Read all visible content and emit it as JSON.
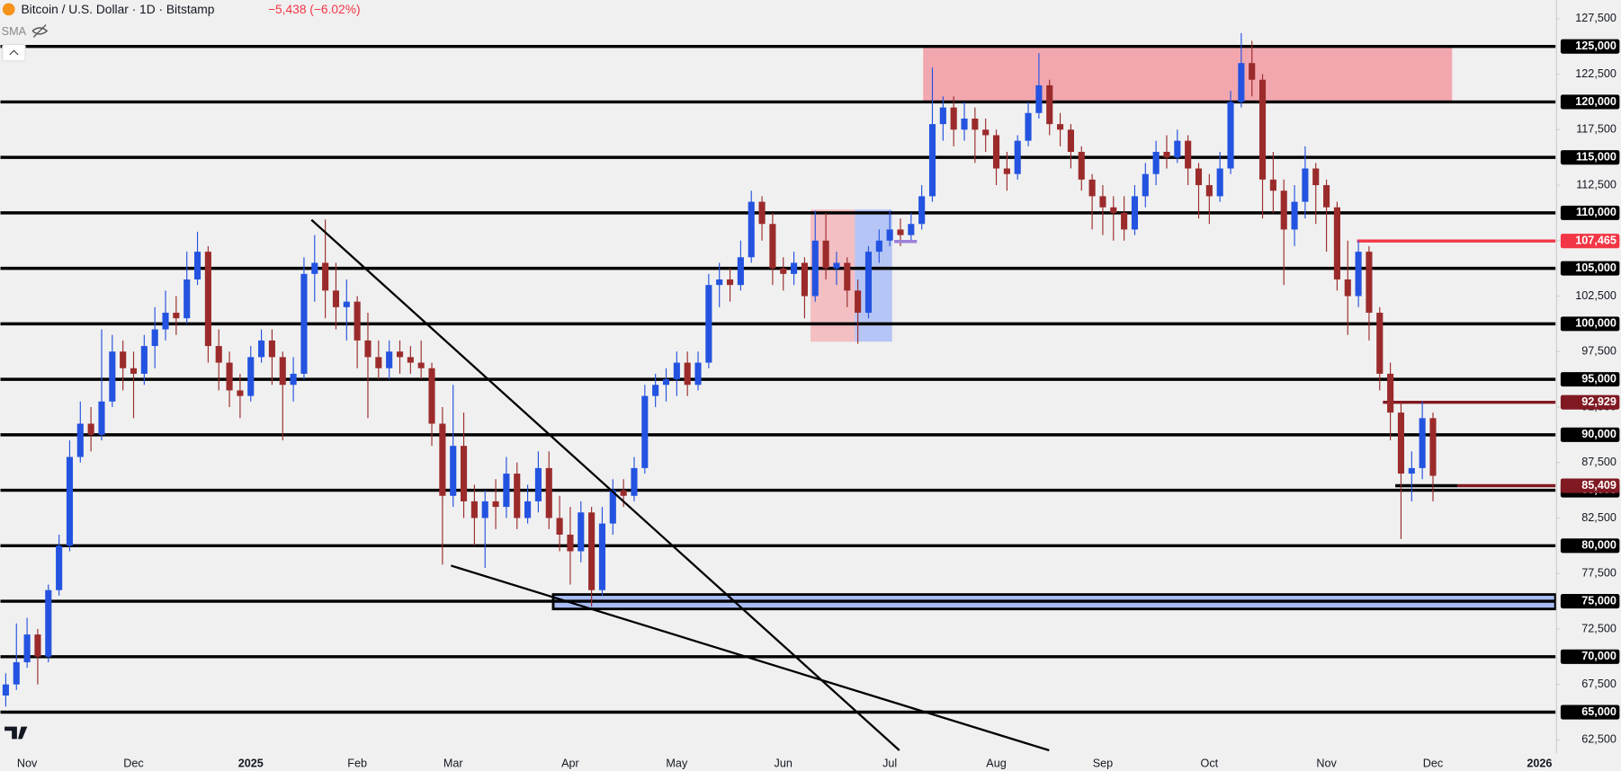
{
  "chart_data": {
    "type": "candlestick",
    "title": "Bitcoin / U.S. Dollar · 1D · Bitstamp",
    "change": "−5,438 (−6.02%)",
    "indicator": "SMA",
    "categories": [
      null,
      null,
      "Nov",
      null,
      null,
      null,
      null,
      null,
      null,
      null,
      null,
      null,
      "Dec",
      null,
      null,
      null,
      null,
      null,
      null,
      null,
      null,
      null,
      null,
      "2025",
      null,
      null,
      null,
      null,
      null,
      null,
      null,
      null,
      null,
      "Feb",
      null,
      null,
      null,
      null,
      null,
      null,
      null,
      null,
      "Mar",
      null,
      null,
      null,
      null,
      null,
      null,
      null,
      null,
      null,
      null,
      "Apr",
      null,
      null,
      null,
      null,
      null,
      null,
      null,
      null,
      null,
      "May",
      null,
      null,
      null,
      null,
      null,
      null,
      null,
      null,
      null,
      "Jun",
      null,
      null,
      null,
      null,
      null,
      null,
      null,
      null,
      null,
      "Jul",
      null,
      null,
      null,
      null,
      null,
      null,
      null,
      null,
      null,
      "Aug",
      null,
      null,
      null,
      null,
      null,
      null,
      null,
      null,
      null,
      "Sep",
      null,
      null,
      null,
      null,
      null,
      null,
      null,
      null,
      null,
      "Oct",
      null,
      null,
      null,
      null,
      null,
      null,
      null,
      null,
      null,
      null,
      "Nov",
      null,
      null,
      null,
      null,
      null,
      null,
      null,
      null,
      null,
      "Dec",
      null,
      null,
      null,
      null,
      null,
      null,
      null,
      null,
      null,
      "2026",
      null
    ],
    "open": [
      66500,
      67500,
      69500,
      72000,
      70000,
      76000,
      80000,
      88000,
      91000,
      90000,
      93000,
      97500,
      96000,
      95500,
      98000,
      99500,
      101000,
      100500,
      104000,
      106500,
      98000,
      96500,
      94000,
      93500,
      97000,
      98500,
      97000,
      94500,
      95500,
      104500,
      105500,
      103000,
      101500,
      102000,
      98500,
      97000,
      96000,
      97500,
      97000,
      96500,
      96000,
      91000,
      84500,
      89000,
      84000,
      82500,
      84000,
      83500,
      86500,
      82500,
      84000,
      87000,
      82500,
      81000,
      79500,
      83000,
      76000,
      82000,
      85000,
      84500,
      87000,
      93500,
      94500,
      95000,
      96500,
      94500,
      96500,
      103500,
      104000,
      103500,
      106000,
      111000,
      109000,
      105000,
      104500,
      105500,
      102500,
      107500,
      105000,
      105500,
      103000,
      101000,
      106500,
      107500,
      108500,
      108000,
      109000,
      111500,
      118000,
      119500,
      117500,
      118500,
      117500,
      117000,
      114000,
      113500,
      116500,
      119000,
      121500,
      118000,
      117500,
      115500,
      113000,
      111500,
      110500,
      110000,
      108500,
      111500,
      113500,
      115500,
      115000,
      116500,
      114000,
      112500,
      111500,
      114000,
      120000,
      123500,
      122000,
      113000,
      112000,
      108500,
      111000,
      114000,
      112500,
      110500,
      104000,
      102500,
      106500,
      101000,
      95500,
      92000,
      86500,
      87000,
      91500,
      null,
      null,
      null,
      null,
      null,
      null,
      null,
      null,
      null,
      null,
      null
    ],
    "high": [
      68500,
      73000,
      73500,
      72500,
      76500,
      81000,
      89500,
      93000,
      92500,
      99500,
      99000,
      98500,
      97500,
      99000,
      101500,
      103000,
      102500,
      106500,
      108300,
      107000,
      99500,
      97500,
      95500,
      98000,
      99500,
      99500,
      97500,
      97000,
      106000,
      108000,
      109400,
      105500,
      104000,
      102500,
      101000,
      98500,
      98500,
      98500,
      98000,
      98500,
      96500,
      92500,
      94500,
      92000,
      85500,
      85000,
      86000,
      88000,
      87500,
      85500,
      88500,
      88500,
      84500,
      83500,
      84000,
      83500,
      83500,
      86000,
      86000,
      88000,
      94500,
      95500,
      96000,
      97500,
      97500,
      97500,
      104500,
      105500,
      105000,
      107500,
      112000,
      111500,
      110000,
      106000,
      106500,
      106000,
      110200,
      110000,
      106500,
      106000,
      104000,
      107000,
      108500,
      110200,
      109500,
      110000,
      112500,
      123100,
      120500,
      120500,
      120000,
      119500,
      118500,
      117500,
      115500,
      117000,
      120000,
      124400,
      122000,
      119000,
      118000,
      116000,
      113500,
      112500,
      111500,
      111500,
      112500,
      114500,
      116500,
      117000,
      117500,
      117000,
      114500,
      113500,
      115500,
      121000,
      126200,
      125500,
      122500,
      115500,
      113000,
      112500,
      116000,
      114500,
      113000,
      111000,
      107500,
      107500,
      107000,
      101500,
      96500,
      93000,
      88500,
      93000,
      92000,
      null,
      null,
      null,
      null,
      null,
      null,
      null,
      null,
      null,
      null,
      null
    ],
    "low": [
      65500,
      67000,
      69000,
      67500,
      69500,
      75500,
      79500,
      87500,
      88500,
      89500,
      92500,
      94000,
      91500,
      94500,
      96000,
      98500,
      99000,
      100000,
      103500,
      96500,
      94000,
      92500,
      91500,
      93000,
      96500,
      94500,
      89500,
      93000,
      95000,
      102000,
      100500,
      99500,
      98500,
      96000,
      91500,
      95000,
      95000,
      95500,
      95500,
      95000,
      89000,
      78300,
      83500,
      82500,
      80000,
      78000,
      81500,
      82500,
      81500,
      82000,
      83000,
      81500,
      79500,
      76500,
      78500,
      74500,
      75500,
      81000,
      83500,
      84000,
      86500,
      92500,
      93000,
      93500,
      93500,
      94000,
      96000,
      101500,
      102000,
      103000,
      105500,
      107500,
      103500,
      103000,
      103500,
      100500,
      102000,
      104000,
      103500,
      101500,
      98200,
      100500,
      105500,
      107000,
      107000,
      107500,
      108500,
      111000,
      116500,
      116000,
      116500,
      114500,
      115500,
      112500,
      112000,
      113000,
      116000,
      118500,
      117000,
      116000,
      114000,
      112000,
      108500,
      108000,
      107500,
      107500,
      108000,
      110500,
      112500,
      114000,
      114500,
      112500,
      109500,
      109000,
      111000,
      113500,
      119500,
      120500,
      109500,
      110000,
      103500,
      107000,
      109500,
      109000,
      106500,
      103000,
      99000,
      101500,
      98500,
      94000,
      89500,
      80600,
      84000,
      86000,
      84000,
      null,
      null,
      null,
      null,
      null,
      null,
      null,
      null,
      null,
      null,
      null
    ],
    "close": [
      67500,
      69500,
      72000,
      70000,
      76000,
      80000,
      88000,
      91000,
      90000,
      93000,
      97500,
      96000,
      95500,
      98000,
      99500,
      101000,
      100500,
      104000,
      106500,
      98000,
      96500,
      94000,
      93500,
      97000,
      98500,
      97000,
      94500,
      95500,
      104500,
      105500,
      103000,
      101500,
      102000,
      98500,
      97000,
      96000,
      97500,
      97000,
      96500,
      96000,
      91000,
      84500,
      89000,
      84000,
      82500,
      84000,
      83500,
      86500,
      82500,
      84000,
      87000,
      82500,
      81000,
      79500,
      83000,
      76000,
      82000,
      85000,
      84500,
      87000,
      93500,
      94500,
      95000,
      96500,
      94500,
      96500,
      103500,
      104000,
      103500,
      106000,
      111000,
      109000,
      105000,
      104500,
      105500,
      102500,
      107500,
      105000,
      105500,
      103000,
      101000,
      106500,
      107500,
      108500,
      108000,
      109000,
      111500,
      118000,
      119500,
      117500,
      118500,
      117500,
      117000,
      114000,
      113500,
      116500,
      119000,
      121500,
      118000,
      117500,
      115500,
      113000,
      111500,
      110500,
      110000,
      108500,
      111500,
      113500,
      115500,
      115000,
      116500,
      114000,
      112500,
      111500,
      114000,
      120000,
      123500,
      122000,
      113000,
      112000,
      108500,
      111000,
      114000,
      112500,
      110500,
      104000,
      102500,
      106500,
      101000,
      95500,
      92000,
      86500,
      87000,
      91500,
      86300,
      null,
      null,
      null,
      null,
      null,
      null,
      null,
      null,
      null,
      null,
      null
    ],
    "up_color": "#2353e0",
    "down_color": "#9b2b2b",
    "ylim": [
      61279,
      129186
    ],
    "yticks": [
      {
        "value": 62500,
        "label": "62,500"
      },
      {
        "value": 67500,
        "label": "67,500"
      },
      {
        "value": 72500,
        "label": "72,500"
      },
      {
        "value": 77500,
        "label": "77,500"
      },
      {
        "value": 82500,
        "label": "82,500"
      },
      {
        "value": 87500,
        "label": "87,500"
      },
      {
        "value": 92500,
        "label": "92,500"
      },
      {
        "value": 97500,
        "label": "97,500"
      },
      {
        "value": 102500,
        "label": "102,500"
      },
      {
        "value": 107500,
        "label": "107,500"
      },
      {
        "value": 112500,
        "label": "112,500"
      },
      {
        "value": 117500,
        "label": "117,500"
      },
      {
        "value": 122500,
        "label": "122,500"
      },
      {
        "value": 127500,
        "label": "127,500"
      }
    ],
    "levels": [
      {
        "value": 65000,
        "label": "65,000"
      },
      {
        "value": 70000,
        "label": "70,000"
      },
      {
        "value": 75000,
        "label": "75,000"
      },
      {
        "value": 80000,
        "label": "80,000"
      },
      {
        "value": 85000,
        "label": "85,000"
      },
      {
        "value": 90000,
        "label": "90,000"
      },
      {
        "value": 95000,
        "label": "95,000"
      },
      {
        "value": 100000,
        "label": "100,000"
      },
      {
        "value": 105000,
        "label": "105,000"
      },
      {
        "value": 110000,
        "label": "110,000"
      },
      {
        "value": 115000,
        "label": "115,000"
      },
      {
        "value": 120000,
        "label": "120,000"
      },
      {
        "value": 125000,
        "label": "125,000"
      }
    ],
    "price_lines": [
      {
        "value": 107465,
        "label": "107,465",
        "color": "#f23645"
      },
      {
        "value": 92929,
        "label": "92,929",
        "color": "#801922"
      },
      {
        "value": 85409,
        "label": "85,409",
        "color": "#801922"
      }
    ],
    "grid": false
  }
}
